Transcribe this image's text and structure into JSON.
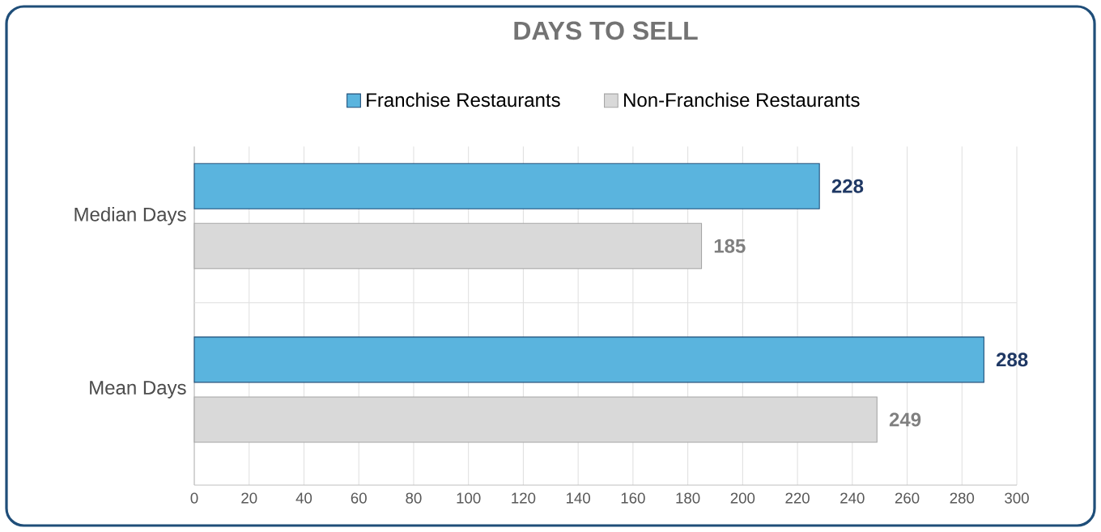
{
  "chart_data": {
    "type": "bar",
    "orientation": "horizontal",
    "title": "DAYS TO SELL",
    "categories": [
      "Median Days",
      "Mean Days"
    ],
    "series": [
      {
        "name": "Franchise Restaurants",
        "color": "#5ab4de",
        "values": [
          228,
          288
        ]
      },
      {
        "name": "Non-Franchise Restaurants",
        "color": "#d9d9d9",
        "values": [
          185,
          249
        ]
      }
    ],
    "xlim": [
      0,
      300
    ],
    "xticks": [
      0,
      20,
      40,
      60,
      80,
      100,
      120,
      140,
      160,
      180,
      200,
      220,
      240,
      260,
      280,
      300
    ],
    "grid": "x",
    "legend": "top",
    "data_labels": true
  }
}
